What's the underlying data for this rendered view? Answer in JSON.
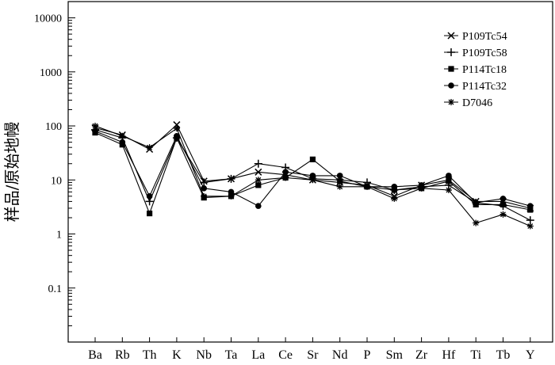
{
  "chart_data": {
    "type": "line",
    "title": "",
    "ylabel": "样品/原始地幔",
    "xlabel": "",
    "y_scale": "log",
    "ylim": [
      0.01,
      20000
    ],
    "y_ticks": [
      {
        "value": 0.1,
        "label": "0.1"
      },
      {
        "value": 1,
        "label": "1"
      },
      {
        "value": 10,
        "label": "10"
      },
      {
        "value": 100,
        "label": "100"
      },
      {
        "value": 1000,
        "label": "1000"
      },
      {
        "value": 10000,
        "label": "10000"
      }
    ],
    "categories": [
      "Ba",
      "Rb",
      "Th",
      "K",
      "Nb",
      "Ta",
      "La",
      "Ce",
      "Sr",
      "Nd",
      "P",
      "Sm",
      "Zr",
      "Hf",
      "Ti",
      "Tb",
      "Y"
    ],
    "legend_position": "top-right",
    "grid": false,
    "series": [
      {
        "name": "P109Tc54",
        "marker": "x",
        "values": [
          92,
          68,
          37,
          105,
          9.5,
          10.5,
          14,
          12.5,
          10,
          9,
          8,
          5,
          8,
          10,
          4,
          4,
          3
        ]
      },
      {
        "name": "P109Tc58",
        "marker": "plus",
        "values": [
          85,
          60,
          4,
          60,
          9,
          10.5,
          20,
          17,
          10.5,
          10,
          9,
          6.5,
          7.5,
          8,
          3.8,
          3.3,
          1.8
        ]
      },
      {
        "name": "P114Tc18",
        "marker": "square",
        "values": [
          75,
          45,
          2.4,
          60,
          4.7,
          5,
          8,
          11,
          24,
          9.5,
          7.5,
          6.5,
          7,
          9.5,
          3.5,
          3.5,
          2.8
        ]
      },
      {
        "name": "P114Tc32",
        "marker": "circle",
        "values": [
          80,
          50,
          5,
          65,
          7,
          6,
          3.3,
          14,
          12,
          12,
          7.5,
          7.5,
          8,
          12,
          3.8,
          4.5,
          3.3
        ]
      },
      {
        "name": "D7046",
        "marker": "star",
        "values": [
          100,
          65,
          40,
          90,
          5,
          5,
          10,
          11,
          10,
          7.5,
          7.5,
          4.5,
          7,
          6.5,
          1.6,
          2.3,
          1.4
        ]
      }
    ]
  }
}
